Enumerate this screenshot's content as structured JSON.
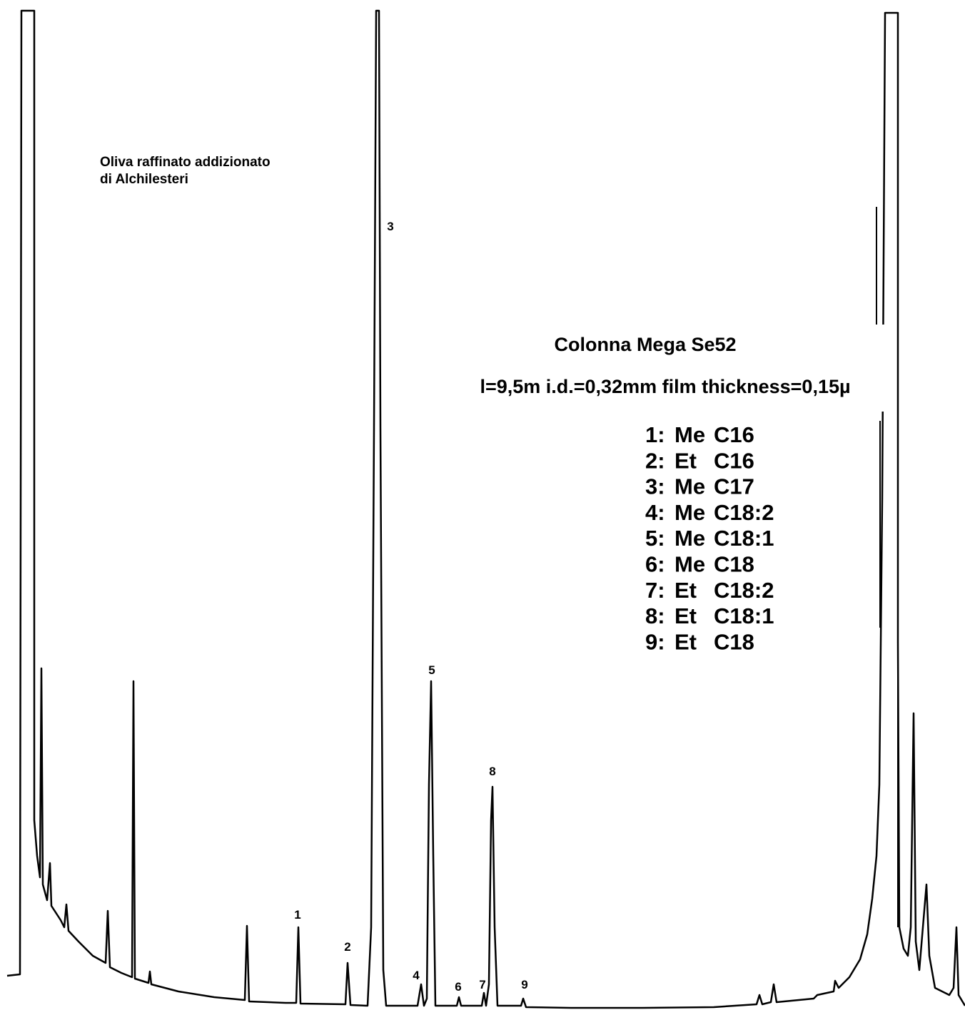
{
  "sample_label": [
    "Oliva raffinato addizionato",
    "di Alchilesteri"
  ],
  "column_title": "Colonna Mega Se52",
  "column_specs": "l=9,5m  i.d.=0,32mm film thickness=0,15µ",
  "legend": [
    {
      "id": "1:",
      "ester": "Me",
      "acid": "C16"
    },
    {
      "id": "2:",
      "ester": "Et",
      "acid": "C16"
    },
    {
      "id": "3:",
      "ester": "Me",
      "acid": "C17"
    },
    {
      "id": "4:",
      "ester": "Me",
      "acid": "C18:2"
    },
    {
      "id": "5:",
      "ester": "Me",
      "acid": "C18:1"
    },
    {
      "id": "6:",
      "ester": "Me",
      "acid": "C18"
    },
    {
      "id": "7:",
      "ester": "Et",
      "acid": "C18:2"
    },
    {
      "id": "8:",
      "ester": "Et",
      "acid": "C18:1"
    },
    {
      "id": "9:",
      "ester": "Et",
      "acid": "C18"
    }
  ],
  "peak_labels": [
    "1",
    "2",
    "3",
    "4",
    "5",
    "6",
    "7",
    "8",
    "9"
  ]
}
